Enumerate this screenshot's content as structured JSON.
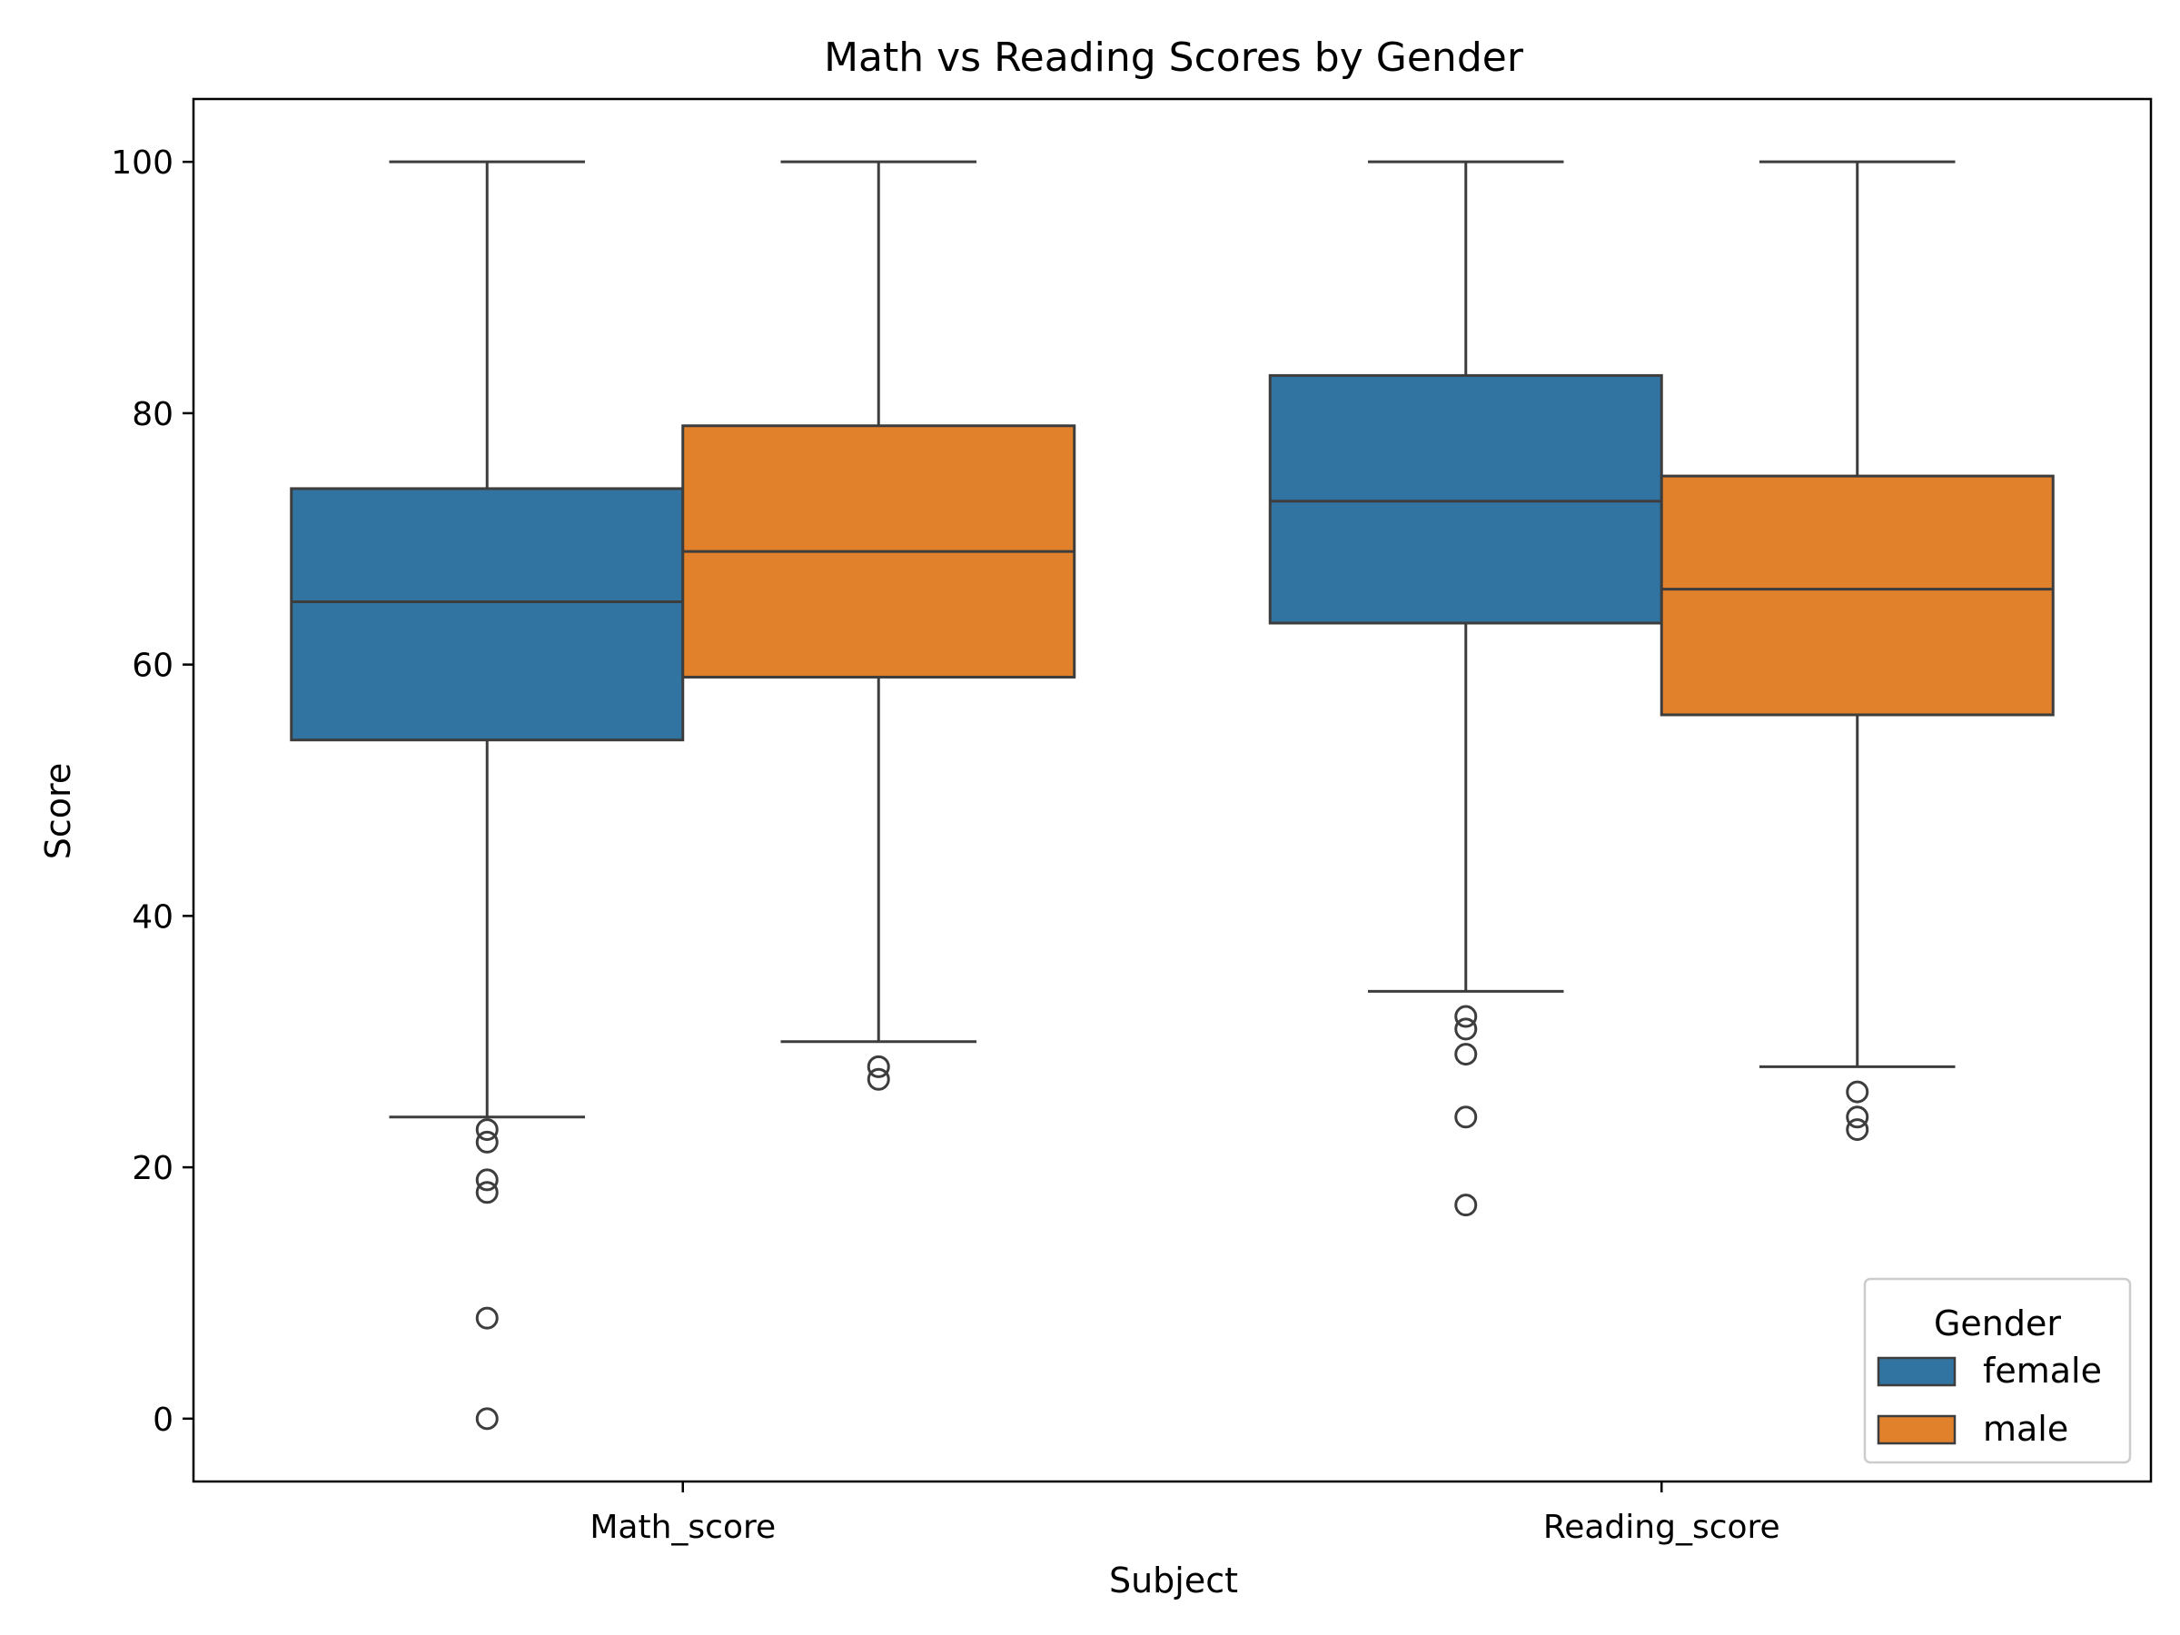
{
  "chart_data": {
    "type": "box",
    "title": "Math vs Reading Scores by Gender",
    "xlabel": "Subject",
    "ylabel": "Score",
    "ylim": [
      -5,
      105
    ],
    "yticks": [
      0,
      20,
      40,
      60,
      80,
      100
    ],
    "categories": [
      "Math_score",
      "Reading_score"
    ],
    "legend": {
      "title": "Gender",
      "position": "bottom-right"
    },
    "series": [
      {
        "name": "female",
        "color": "#3274a1",
        "boxes": [
          {
            "whisker_low": 24,
            "q1": 54,
            "median": 65,
            "q3": 74,
            "whisker_high": 100,
            "outliers": [
              23,
              22,
              19,
              18,
              8,
              0
            ]
          },
          {
            "whisker_low": 34,
            "q1": 63.3,
            "median": 73,
            "q3": 83,
            "whisker_high": 100,
            "outliers": [
              32,
              31,
              29,
              24,
              17
            ]
          }
        ]
      },
      {
        "name": "male",
        "color": "#e1812c",
        "boxes": [
          {
            "whisker_low": 30,
            "q1": 59,
            "median": 69,
            "q3": 79,
            "whisker_high": 100,
            "outliers": [
              28,
              27
            ]
          },
          {
            "whisker_low": 28,
            "q1": 56,
            "median": 66,
            "q3": 75,
            "whisker_high": 100,
            "outliers": [
              26,
              24,
              23
            ]
          }
        ]
      }
    ]
  }
}
